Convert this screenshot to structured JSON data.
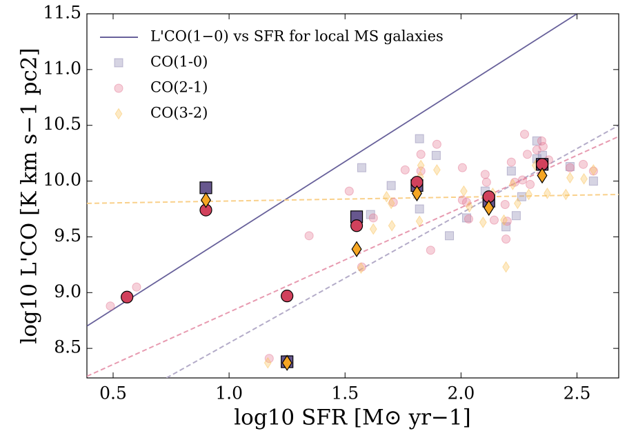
{
  "chart_data": {
    "type": "scatter",
    "xlabel": "log10 SFR [M⊙ yr−1]",
    "ylabel": "log10 L'CO [K km s−1 pc2]",
    "xlim": [
      0.387,
      2.68
    ],
    "ylim": [
      8.235,
      11.5
    ],
    "xticks": [
      0.5,
      {
        "value": 1,
        "label": "1.0"
      },
      1.5,
      {
        "value": 2,
        "label": "2.0"
      },
      2.5
    ],
    "yticks": [
      8.5,
      {
        "value": 9,
        "label": "9.0"
      },
      9.5,
      {
        "value": 10,
        "label": "10.0"
      },
      10.5,
      {
        "value": 11,
        "label": "11.0"
      },
      11.5
    ],
    "legend": "upper left",
    "series": [
      {
        "name": "L'CO(1−0) vs SFR for local MS galaxies",
        "kind": "line",
        "color": "#67609a",
        "dashed": false,
        "x": [
          0.387,
          2.5
        ],
        "values": [
          8.7,
          11.5
        ]
      },
      {
        "kind": "line",
        "color": "#b3abc8",
        "dashed": true,
        "x": [
          0.73,
          2.68
        ],
        "values": [
          8.235,
          10.5
        ]
      },
      {
        "kind": "line",
        "color": "#e79ab0",
        "dashed": true,
        "x": [
          0.387,
          2.68
        ],
        "values": [
          8.25,
          10.4
        ]
      },
      {
        "kind": "line",
        "color": "#f9d08a",
        "dashed": true,
        "x": [
          0.387,
          2.68
        ],
        "values": [
          9.8,
          9.88
        ]
      },
      {
        "name": "CO(1-0)",
        "kind": "points",
        "marker": "square",
        "color": "#8a84b0",
        "faded": true,
        "x": [
          1.572,
          1.61,
          1.821,
          1.821,
          1.893,
          1.699,
          1.95,
          2.024,
          2.104,
          2.194,
          2.217,
          2.238,
          2.262,
          2.327,
          2.327,
          2.351,
          2.47,
          2.571,
          1.256
        ],
        "values": [
          10.12,
          9.7,
          10.38,
          9.75,
          10.23,
          9.96,
          9.51,
          9.67,
          9.91,
          9.59,
          10.09,
          9.69,
          9.86,
          10.2,
          10.36,
          10.23,
          10.13,
          10.0,
          8.4
        ]
      },
      {
        "name": "CO(2-1)",
        "kind": "points",
        "marker": "circle",
        "color": "#e47a95",
        "faded": true,
        "x": [
          0.488,
          0.601,
          1.173,
          1.345,
          1.518,
          1.572,
          1.622,
          1.759,
          1.827,
          1.827,
          1.896,
          2.006,
          2.006,
          2.024,
          2.033,
          2.104,
          2.11,
          2.143,
          2.19,
          2.194,
          2.217,
          2.232,
          2.274,
          2.286,
          2.298,
          2.327,
          2.348,
          2.354,
          2.378,
          2.47,
          2.527,
          2.571,
          1.869,
          1.708,
          2.199,
          2.265
        ],
        "values": [
          8.88,
          9.05,
          8.41,
          9.51,
          9.91,
          9.23,
          9.67,
          10.1,
          10.24,
          10.09,
          10.33,
          10.12,
          9.83,
          9.81,
          9.66,
          10.06,
          9.99,
          9.65,
          9.79,
          9.48,
          10.17,
          9.99,
          10.42,
          10.24,
          9.97,
          10.28,
          10.36,
          10.31,
          10.19,
          10.12,
          10.15,
          10.09,
          9.38,
          9.81,
          9.64,
          10.01
        ]
      },
      {
        "name": "CO(3-2)",
        "kind": "points",
        "marker": "diamond",
        "color": "#f9c25a",
        "faded": true,
        "x": [
          1.167,
          1.569,
          1.622,
          1.679,
          1.699,
          1.821,
          1.824,
          1.827,
          1.896,
          2.012,
          2.036,
          2.095,
          2.113,
          2.137,
          2.185,
          2.194,
          2.223,
          2.244,
          2.292,
          2.321,
          2.372,
          2.452,
          2.47,
          2.53,
          2.571,
          1.702
        ],
        "values": [
          8.37,
          9.22,
          9.57,
          9.86,
          9.8,
          9.64,
          10.04,
          10.14,
          10.1,
          9.91,
          9.77,
          9.63,
          9.83,
          9.89,
          9.65,
          9.23,
          9.97,
          9.8,
          9.88,
          10.14,
          9.89,
          9.88,
          10.03,
          10.02,
          10.1,
          9.6
        ]
      },
      {
        "kind": "points",
        "marker": "square",
        "color": "#67578e",
        "faded": false,
        "x": [
          0.9,
          1.25,
          1.55,
          1.81,
          2.12,
          2.35
        ],
        "values": [
          9.94,
          8.38,
          9.68,
          9.96,
          9.82,
          10.15
        ]
      },
      {
        "kind": "points",
        "marker": "circle",
        "color": "#d1415c",
        "faded": false,
        "x": [
          0.56,
          0.9,
          1.25,
          1.55,
          1.81,
          2.12,
          2.35
        ],
        "values": [
          8.96,
          9.74,
          8.97,
          9.6,
          9.99,
          9.86,
          10.15
        ]
      },
      {
        "kind": "points",
        "marker": "diamond",
        "color": "#f5a623",
        "faded": false,
        "x": [
          0.9,
          1.25,
          1.55,
          1.81,
          2.12,
          2.35
        ],
        "values": [
          9.83,
          8.37,
          9.39,
          9.89,
          9.76,
          10.05
        ]
      }
    ]
  }
}
